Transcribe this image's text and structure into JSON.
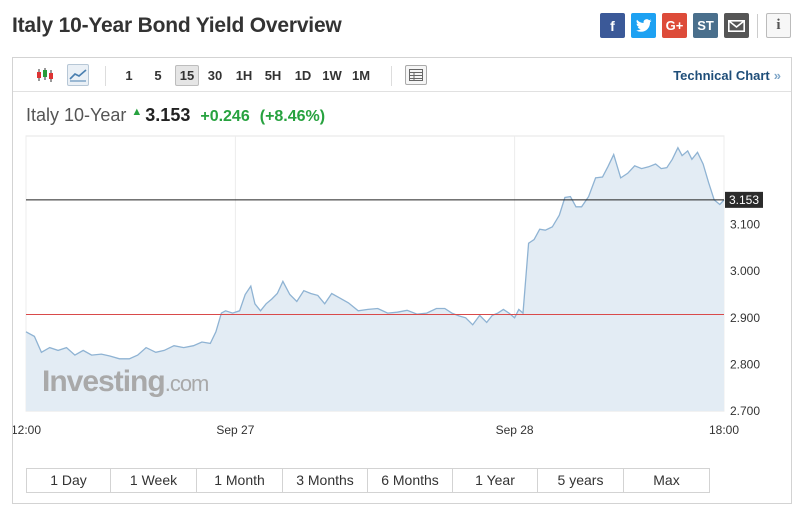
{
  "header": {
    "title": "Italy 10-Year Bond Yield Overview",
    "share": {
      "facebook": "f",
      "twitter": "t",
      "google": "G+",
      "stocktwits": "ST",
      "email": "✉"
    },
    "info": "i"
  },
  "toolbar": {
    "timeframes": [
      "1",
      "5",
      "15",
      "30",
      "1H",
      "5H",
      "1D",
      "1W",
      "1M"
    ],
    "active_timeframe": "15",
    "technical_link": "Technical Chart",
    "technical_arrow": "»"
  },
  "quote": {
    "name": "Italy 10-Year",
    "direction_icon": "▲",
    "price": "3.153",
    "change": "+0.246",
    "change_pct": "(+8.46%)"
  },
  "colors": {
    "line": "#8fb3d3",
    "fill": "#e3ecf4",
    "ref_line": "#d94a4a",
    "up": "#27a23f",
    "last_price_line": "#222222"
  },
  "chart_data": {
    "type": "area",
    "x_ticks": [
      "12:00",
      "Sep 27",
      "Sep 28",
      "18:00"
    ],
    "x_tick_positions": [
      0.0,
      0.3,
      0.7,
      1.0
    ],
    "ylim": [
      2.7,
      3.29
    ],
    "y_ticks": [
      "2.700",
      "2.800",
      "2.900",
      "3.000",
      "3.100"
    ],
    "last_price_label": "3.153",
    "last_price": 3.153,
    "reference_price": 2.907,
    "watermark": "Investing.com",
    "x": [
      0,
      0.012,
      0.022,
      0.034,
      0.046,
      0.058,
      0.07,
      0.082,
      0.094,
      0.108,
      0.12,
      0.134,
      0.148,
      0.16,
      0.172,
      0.186,
      0.198,
      0.212,
      0.226,
      0.24,
      0.252,
      0.264,
      0.272,
      0.28,
      0.286,
      0.296,
      0.306,
      0.314,
      0.322,
      0.328,
      0.336,
      0.344,
      0.352,
      0.36,
      0.368,
      0.378,
      0.388,
      0.398,
      0.408,
      0.418,
      0.428,
      0.438,
      0.45,
      0.462,
      0.476,
      0.49,
      0.504,
      0.518,
      0.532,
      0.546,
      0.56,
      0.574,
      0.588,
      0.6,
      0.61,
      0.62,
      0.63,
      0.64,
      0.65,
      0.66,
      0.668,
      0.676,
      0.684,
      0.692,
      0.7,
      0.706,
      0.712,
      0.72,
      0.728,
      0.736,
      0.744,
      0.754,
      0.764,
      0.772,
      0.78,
      0.788,
      0.796,
      0.806,
      0.816,
      0.826,
      0.834,
      0.842,
      0.852,
      0.862,
      0.872,
      0.882,
      0.892,
      0.902,
      0.91,
      0.918,
      0.926,
      0.934,
      0.94,
      0.948,
      0.954,
      0.962,
      0.97,
      0.978,
      0.986,
      0.994,
      1.0
    ],
    "y": [
      2.87,
      2.86,
      2.826,
      2.836,
      2.83,
      2.836,
      2.82,
      2.83,
      2.82,
      2.822,
      2.818,
      2.812,
      2.812,
      2.82,
      2.836,
      2.826,
      2.83,
      2.84,
      2.836,
      2.84,
      2.848,
      2.845,
      2.87,
      2.91,
      2.915,
      2.91,
      2.915,
      2.95,
      2.968,
      2.93,
      2.915,
      2.93,
      2.94,
      2.952,
      2.978,
      2.95,
      2.935,
      2.958,
      2.952,
      2.948,
      2.93,
      2.952,
      2.942,
      2.932,
      2.915,
      2.918,
      2.92,
      2.91,
      2.912,
      2.916,
      2.908,
      2.91,
      2.92,
      2.92,
      2.91,
      2.904,
      2.9,
      2.885,
      2.905,
      2.89,
      2.905,
      2.91,
      2.918,
      2.91,
      2.9,
      2.918,
      2.91,
      3.06,
      3.068,
      3.09,
      3.088,
      3.095,
      3.12,
      3.158,
      3.16,
      3.138,
      3.138,
      3.16,
      3.2,
      3.202,
      3.225,
      3.25,
      3.2,
      3.21,
      3.226,
      3.22,
      3.224,
      3.23,
      3.22,
      3.222,
      3.24,
      3.265,
      3.248,
      3.258,
      3.24,
      3.255,
      3.23,
      3.19,
      3.153,
      3.143,
      3.153
    ]
  },
  "ranges": [
    "1 Day",
    "1 Week",
    "1 Month",
    "3 Months",
    "6 Months",
    "1 Year",
    "5 years",
    "Max"
  ]
}
